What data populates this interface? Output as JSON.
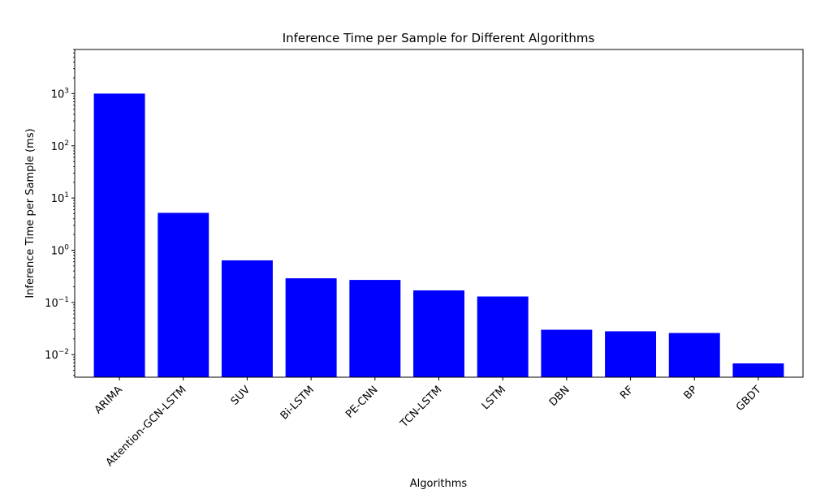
{
  "chart_data": {
    "type": "bar",
    "title": "Inference Time per Sample for Different Algorithms",
    "xlabel": "Algorithms",
    "ylabel": "Inference Time per Sample (ms)",
    "y_scale": "log",
    "ylim": [
      0.0037,
      7000
    ],
    "y_ticks": [
      {
        "value": 0.01,
        "base": "10",
        "exp": "−2"
      },
      {
        "value": 0.1,
        "base": "10",
        "exp": "−1"
      },
      {
        "value": 1,
        "base": "10",
        "exp": "0"
      },
      {
        "value": 10,
        "base": "10",
        "exp": "1"
      },
      {
        "value": 100,
        "base": "10",
        "exp": "2"
      },
      {
        "value": 1000,
        "base": "10",
        "exp": "3"
      }
    ],
    "categories": [
      "ARIMA",
      "Attention-GCN-LSTM",
      "SUV",
      "Bi-LSTM",
      "PE-CNN",
      "TCN-LSTM",
      "LSTM",
      "DBN",
      "RF",
      "BP",
      "GBDT"
    ],
    "values": [
      1000,
      5.2,
      0.64,
      0.29,
      0.27,
      0.17,
      0.13,
      0.03,
      0.028,
      0.026,
      0.0068
    ],
    "bar_color": "#0000ff",
    "grid": false,
    "legend": "none"
  }
}
